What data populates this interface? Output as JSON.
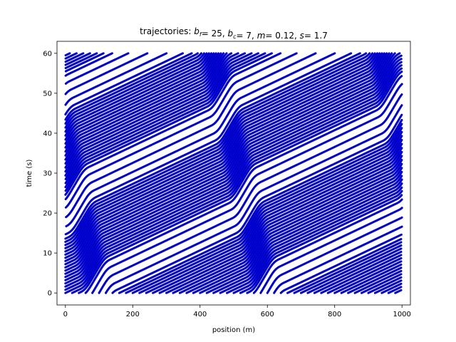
{
  "chart_data": {
    "type": "line",
    "title_parts": [
      {
        "t": "trajectories: ",
        "i": false
      },
      {
        "t": "b",
        "i": true
      },
      {
        "t": "f",
        "i": true,
        "sub": true
      },
      {
        "t": "= 25, ",
        "i": false
      },
      {
        "t": "b",
        "i": true
      },
      {
        "t": "c",
        "i": true,
        "sub": true
      },
      {
        "t": "= 7, ",
        "i": false
      },
      {
        "t": "m",
        "i": true
      },
      {
        "t": "= 0.12, ",
        "i": false
      },
      {
        "t": "s",
        "i": true
      },
      {
        "t": "= 1.7",
        "i": false
      }
    ],
    "xlabel": "position (m)",
    "ylabel": "time (s)",
    "xlim": [
      -25,
      1025
    ],
    "ylim": [
      -3,
      63
    ],
    "xticks": [
      0,
      200,
      400,
      600,
      800,
      1000
    ],
    "yticks": [
      0,
      10,
      20,
      30,
      40,
      50,
      60
    ],
    "road_length": 1000,
    "time_range": [
      0,
      60
    ],
    "vehicle_count": 50,
    "free_speed": 25,
    "congested_speed": 7,
    "wave_speed": -2.7,
    "marker_interval": 0.1,
    "line_color": "#0000cc",
    "grid": false
  }
}
